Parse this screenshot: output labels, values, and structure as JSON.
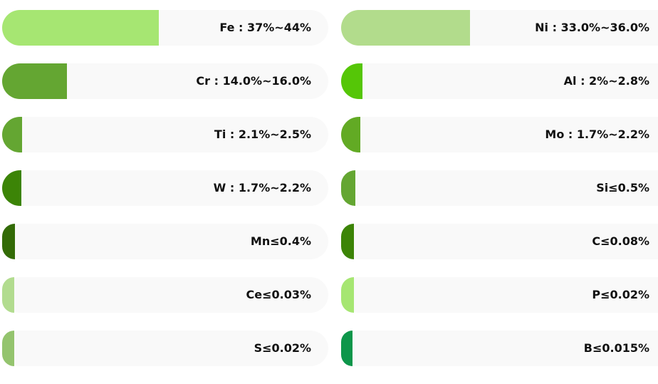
{
  "chart_data": {
    "type": "bar",
    "columns": [
      {
        "items": [
          {
            "label": "Fe : 37%~44%",
            "fraction": 0.48,
            "color": "#a6e672"
          },
          {
            "label": "Cr : 14.0%~16.0%",
            "fraction": 0.198,
            "color": "#64a632"
          },
          {
            "label": "Ti : 2.1%~2.5%",
            "fraction": 0.062,
            "color": "#64a632"
          },
          {
            "label": "W : 1.7%~2.2%",
            "fraction": 0.058,
            "color": "#3c8407"
          },
          {
            "label": "Mn≤0.4%",
            "fraction": 0.04,
            "color": "#336b07"
          },
          {
            "label": "Ce≤0.03%",
            "fraction": 0.037,
            "color": "#b2dc8f"
          },
          {
            "label": "S≤0.02%",
            "fraction": 0.037,
            "color": "#94c46e"
          }
        ]
      },
      {
        "items": [
          {
            "label": "Ni : 33.0%~36.0%",
            "fraction": 0.407,
            "color": "#b2dc8c"
          },
          {
            "label": "Al : 2%~2.8%",
            "fraction": 0.067,
            "color": "#55c607"
          },
          {
            "label": "Mo : 1.7%~2.2%",
            "fraction": 0.061,
            "color": "#62aa24"
          },
          {
            "label": "Si≤0.5%",
            "fraction": 0.045,
            "color": "#64a632"
          },
          {
            "label": "C≤0.08%",
            "fraction": 0.04,
            "color": "#3c8407"
          },
          {
            "label": "P≤0.02%",
            "fraction": 0.04,
            "color": "#a6e672"
          },
          {
            "label": "B≤0.015%",
            "fraction": 0.036,
            "color": "#0d964a"
          }
        ]
      }
    ]
  }
}
